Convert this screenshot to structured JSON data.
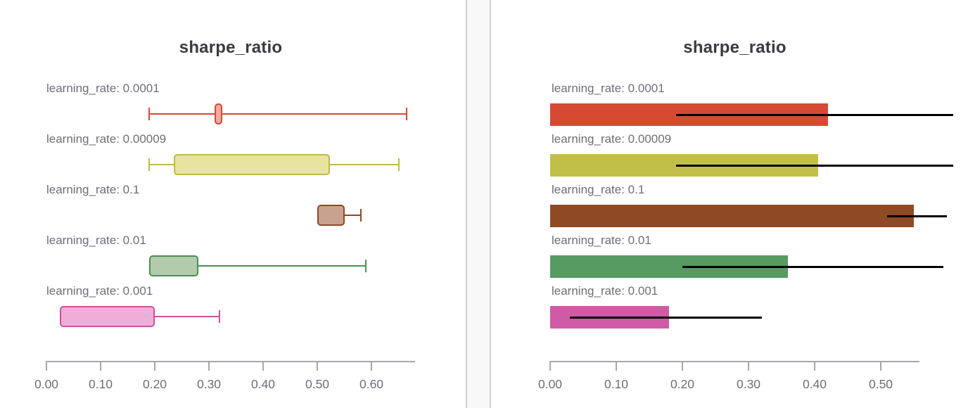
{
  "chart_data": [
    {
      "type": "box",
      "title": "sharpe_ratio",
      "orientation": "horizontal",
      "grid": false,
      "xtick_labels": [
        "0.00",
        "0.10",
        "0.20",
        "0.30",
        "0.40",
        "0.50",
        "0.60"
      ],
      "xlim": [
        0.0,
        0.68
      ],
      "boxes": [
        {
          "label": "learning_rate: 0.0001",
          "whisker_min": 0.19,
          "q1": 0.31,
          "q3": 0.325,
          "whisker_max": 0.665,
          "left_cap": true,
          "fill": "#eeab9e",
          "stroke": "#d64a33"
        },
        {
          "label": "learning_rate: 0.00009",
          "whisker_min": 0.19,
          "q1": 0.235,
          "q3": 0.523,
          "whisker_max": 0.65,
          "left_cap": true,
          "fill": "#e7e4a2",
          "stroke": "#bdbc43"
        },
        {
          "label": "learning_rate: 0.1",
          "whisker_min": 0.5,
          "q1": 0.5,
          "q3": 0.55,
          "whisker_max": 0.58,
          "left_cap": false,
          "fill": "#c8a28e",
          "stroke": "#8e4a24"
        },
        {
          "label": "learning_rate: 0.01",
          "whisker_min": 0.19,
          "q1": 0.19,
          "q3": 0.28,
          "whisker_max": 0.59,
          "left_cap": false,
          "fill": "#b2cbab",
          "stroke": "#4e8e55"
        },
        {
          "label": "learning_rate: 0.001",
          "whisker_min": 0.025,
          "q1": 0.025,
          "q3": 0.2,
          "whisker_max": 0.32,
          "left_cap": false,
          "fill": "#f1add9",
          "stroke": "#d14f9f"
        }
      ]
    },
    {
      "type": "bar",
      "title": "sharpe_ratio",
      "orientation": "horizontal",
      "grid": false,
      "xtick_labels": [
        "0.00",
        "0.10",
        "0.20",
        "0.30",
        "0.40",
        "0.50"
      ],
      "xlim": [
        0.0,
        0.56
      ],
      "categories": [
        "learning_rate: 0.0001",
        "learning_rate: 0.00009",
        "learning_rate: 0.1",
        "learning_rate: 0.01",
        "learning_rate: 0.001"
      ],
      "values": [
        0.42,
        0.405,
        0.55,
        0.36,
        0.18
      ],
      "error_low": [
        0.19,
        0.19,
        0.51,
        0.2,
        0.03
      ],
      "error_high": [
        0.61,
        0.61,
        0.6,
        0.595,
        0.32
      ],
      "colors": [
        "#d64a33",
        "#c1bf4a",
        "#8e4a24",
        "#579a62",
        "#cf5ba5"
      ],
      "error_color": "#000000"
    }
  ]
}
